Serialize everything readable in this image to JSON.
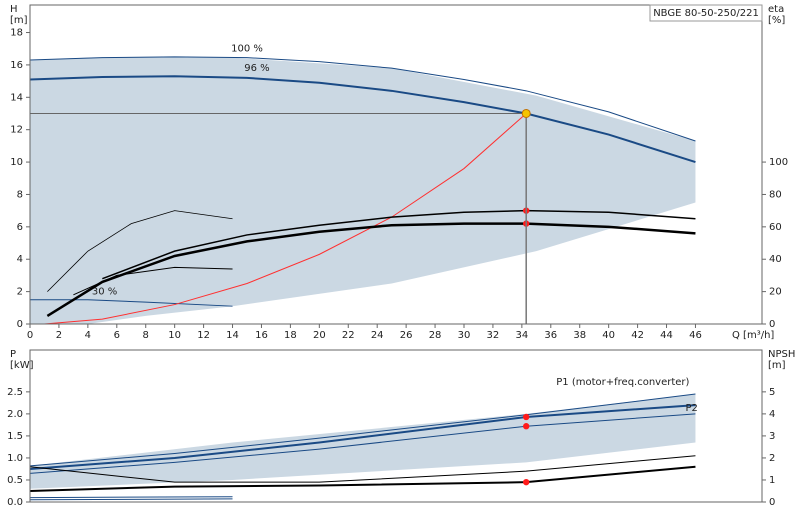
{
  "chart_data": [
    {
      "type": "line",
      "title": "NBGE 80-50-250/221",
      "y_label": [
        "H",
        "[m]"
      ],
      "y2_label": [
        "eta",
        "[%]"
      ],
      "x_label": "Q [m³/h]",
      "xlim": [
        0,
        50.6
      ],
      "ylim": [
        0,
        19.7
      ],
      "y2lim": [
        0,
        197
      ],
      "xticks": [
        0,
        2,
        4,
        6,
        8,
        10,
        12,
        14,
        16,
        18,
        20,
        22,
        24,
        26,
        28,
        30,
        32,
        34,
        36,
        38,
        40,
        42,
        44,
        46
      ],
      "yticks": [
        0,
        2,
        4,
        6,
        8,
        10,
        12,
        14,
        16,
        18
      ],
      "y2ticks": [
        0,
        20,
        40,
        60,
        80,
        100
      ],
      "op_point": {
        "x": 34.3,
        "y": 13.0,
        "color": "#f5c400"
      },
      "series": [
        {
          "type": "band",
          "color": "#cbd8e3",
          "x": [
            0,
            4,
            8,
            14,
            25,
            35,
            46
          ],
          "lower": [
            0,
            0,
            0.5,
            1.1,
            2.5,
            4.5,
            7.5
          ],
          "upper": [
            16.3,
            16.45,
            16.5,
            16.45,
            15.8,
            14.1,
            11.3
          ]
        },
        {
          "type": "line",
          "label": "100 %",
          "color": "#1a4a85",
          "width": 1,
          "x": [
            0,
            5,
            10,
            15,
            20,
            25,
            30,
            34.3,
            40,
            46
          ],
          "values": [
            16.3,
            16.45,
            16.5,
            16.45,
            16.2,
            15.8,
            15.1,
            14.4,
            13.1,
            11.3
          ]
        },
        {
          "type": "line",
          "label": "96 %",
          "color": "#1a4a85",
          "width": 2,
          "x": [
            0,
            5,
            10,
            15,
            20,
            25,
            30,
            34.3,
            40,
            46
          ],
          "values": [
            15.1,
            15.25,
            15.3,
            15.2,
            14.9,
            14.4,
            13.7,
            13.0,
            11.7,
            10.0
          ]
        },
        {
          "type": "line",
          "label": "30 %",
          "color": "#1a4a85",
          "width": 1,
          "x": [
            0,
            4,
            8,
            14
          ],
          "values": [
            1.5,
            1.5,
            1.35,
            1.1
          ]
        },
        {
          "type": "line",
          "color": "#ff3030",
          "width": 1,
          "x": [
            1,
            5,
            10,
            15,
            20,
            25,
            30,
            34.3
          ],
          "values": [
            0,
            0.3,
            1.2,
            2.5,
            4.3,
            6.6,
            9.6,
            13.0
          ]
        },
        {
          "type": "line",
          "axis": "y2",
          "color": "#000",
          "width": 1.5,
          "x": [
            5,
            10,
            15,
            20,
            25,
            30,
            34.3,
            40,
            46
          ],
          "values": [
            28,
            45,
            55,
            61,
            66,
            69,
            70,
            69,
            65
          ]
        },
        {
          "type": "line",
          "axis": "y2",
          "color": "#000",
          "width": 2.5,
          "x": [
            1.2,
            5,
            10,
            15,
            20,
            25,
            30,
            34.3,
            40,
            46
          ],
          "values": [
            5,
            26,
            42,
            51,
            57,
            61,
            62,
            62,
            60,
            56
          ]
        },
        {
          "type": "line",
          "axis": "y2",
          "color": "#000",
          "width": 0.8,
          "x": [
            1.2,
            4,
            7,
            10,
            14
          ],
          "values": [
            20,
            45,
            62,
            70,
            65
          ]
        },
        {
          "type": "line",
          "axis": "y2",
          "color": "#000",
          "width": 1,
          "x": [
            3,
            6,
            10,
            14
          ],
          "values": [
            18,
            30,
            35,
            34
          ]
        },
        {
          "type": "points",
          "axis": "y2",
          "color": "#ff1a1a",
          "x": [
            34.3,
            34.3
          ],
          "values": [
            70,
            62
          ]
        }
      ]
    },
    {
      "type": "line",
      "y_label": [
        "P",
        "[kW]"
      ],
      "y2_label": [
        "NPSH",
        "[m]"
      ],
      "xlim": [
        0,
        50.6
      ],
      "ylim": [
        0,
        3.45
      ],
      "y2lim": [
        0,
        6.9
      ],
      "yticks": [
        {
          "value": 0,
          "label": "0.0"
        },
        0.5,
        {
          "value": 1,
          "label": "1.0"
        },
        1.5,
        {
          "value": 2,
          "label": "2.0"
        },
        2.5
      ],
      "y2ticks": [
        0,
        1,
        2,
        3,
        4,
        5
      ],
      "series": [
        {
          "type": "band",
          "color": "#cbd8e3",
          "x": [
            0,
            14,
            34.3,
            46
          ],
          "lower": [
            0.3,
            0.5,
            0.9,
            1.35
          ],
          "upper": [
            0.82,
            1.35,
            2.0,
            2.45
          ]
        },
        {
          "type": "line",
          "label": "P1 (motor+freq.converter)",
          "color": "#1a4a85",
          "width": 1,
          "x": [
            0,
            10,
            20,
            34.3,
            46
          ],
          "values": [
            0.82,
            1.1,
            1.45,
            1.98,
            2.45
          ]
        },
        {
          "type": "line",
          "color": "#1a4a85",
          "width": 2,
          "x": [
            0,
            10,
            20,
            34.3,
            46
          ],
          "values": [
            0.75,
            1.0,
            1.35,
            1.93,
            2.2
          ]
        },
        {
          "type": "line",
          "label": "P2",
          "color": "#1a4a85",
          "width": 1,
          "x": [
            0,
            10,
            20,
            34.3,
            46
          ],
          "values": [
            0.65,
            0.9,
            1.2,
            1.72,
            2.0
          ]
        },
        {
          "type": "line",
          "color": "#1a4a85",
          "width": 1,
          "x": [
            0,
            14
          ],
          "values": [
            0.1,
            0.12
          ]
        },
        {
          "type": "line",
          "color": "#1a4a85",
          "width": 1,
          "x": [
            0,
            14
          ],
          "values": [
            0.05,
            0.07
          ]
        },
        {
          "type": "line",
          "axis": "y2",
          "color": "#000",
          "width": 1,
          "x": [
            0,
            10,
            20,
            34.3,
            46
          ],
          "values": [
            1.6,
            0.9,
            0.9,
            1.4,
            2.1
          ]
        },
        {
          "type": "line",
          "axis": "y2",
          "color": "#000",
          "width": 2,
          "x": [
            0,
            10,
            20,
            34.3,
            46
          ],
          "values": [
            0.5,
            0.7,
            0.75,
            0.9,
            1.6
          ]
        },
        {
          "type": "points",
          "color": "#ff1a1a",
          "x": [
            34.3,
            34.3
          ],
          "values": [
            1.93,
            1.72
          ]
        },
        {
          "type": "points",
          "axis": "y2",
          "color": "#ff1a1a",
          "x": [
            34.3
          ],
          "values": [
            0.9
          ]
        }
      ]
    }
  ]
}
